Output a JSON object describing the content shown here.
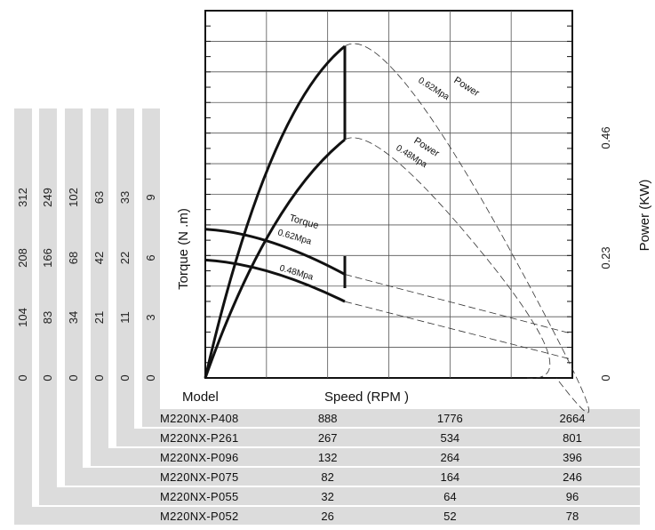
{
  "chart_data": {
    "type": "line",
    "xlabel": "Speed (RPM )",
    "ylabel": "Torque (N .m)",
    "y2label": "Power (KW)",
    "table_header": "Model",
    "power_axis_ticks": [
      "0",
      "0.23",
      "0.46"
    ],
    "rpm_ticks_per_model": [
      {
        "model": "M220NX-P408",
        "rpm": [
          "888",
          "1776",
          "2664"
        ],
        "torque_ticks": [
          "0",
          "3",
          "6",
          "9"
        ]
      },
      {
        "model": "M220NX-P261",
        "rpm": [
          "267",
          "534",
          "801"
        ],
        "torque_ticks": [
          "0",
          "11",
          "22",
          "33"
        ]
      },
      {
        "model": "M220NX-P096",
        "rpm": [
          "132",
          "264",
          "396"
        ],
        "torque_ticks": [
          "0",
          "21",
          "42",
          "63"
        ]
      },
      {
        "model": "M220NX-P075",
        "rpm": [
          "82",
          "164",
          "246"
        ],
        "torque_ticks": [
          "0",
          "34",
          "68",
          "102"
        ]
      },
      {
        "model": "M220NX-P055",
        "rpm": [
          "32",
          "64",
          "96"
        ],
        "torque_ticks": [
          "0",
          "83",
          "166",
          "249"
        ]
      },
      {
        "model": "M220NX-P052",
        "rpm": [
          "26",
          "52",
          "78"
        ],
        "torque_ticks": [
          "0",
          "104",
          "208",
          "312"
        ]
      }
    ],
    "x_units": "fraction of max speed (3 columns = 1/3, 2/3, 1)",
    "y_units": "fraction of max torque (4 rows = 0, 1/3, 2/3, 1)",
    "series": [
      {
        "name": "Torque 0.62Mpa",
        "kind": "torque",
        "solid_end": 0.43,
        "points": [
          [
            0,
            0.405
          ],
          [
            0.43,
            0.282
          ],
          [
            1,
            0.12
          ]
        ]
      },
      {
        "name": "0.48Mpa",
        "kind": "torque",
        "solid_end": 0.43,
        "points": [
          [
            0,
            0.321
          ],
          [
            0.43,
            0.208
          ],
          [
            1,
            0.05
          ]
        ]
      },
      {
        "name": "Power 0.62Mpa",
        "kind": "power",
        "peak": [
          0.55,
          0.93
        ],
        "end": 1.0,
        "solid_end": 0.43
      },
      {
        "name": "Power 0.48Mpa",
        "kind": "power",
        "peak": [
          0.52,
          0.71
        ],
        "end": 0.91,
        "solid_end": 0.43
      }
    ],
    "curve_labels": [
      {
        "text": "Power",
        "series": 2
      },
      {
        "text": "0.62Mpa",
        "series": 2
      },
      {
        "text": "Power",
        "series": 3
      },
      {
        "text": "0.48Mpa",
        "series": 3
      },
      {
        "text": "Torque",
        "series": 0
      },
      {
        "text": "0.62Mpa",
        "series": 0
      },
      {
        "text": "0.48Mpa",
        "series": 1
      }
    ],
    "grid": true
  }
}
